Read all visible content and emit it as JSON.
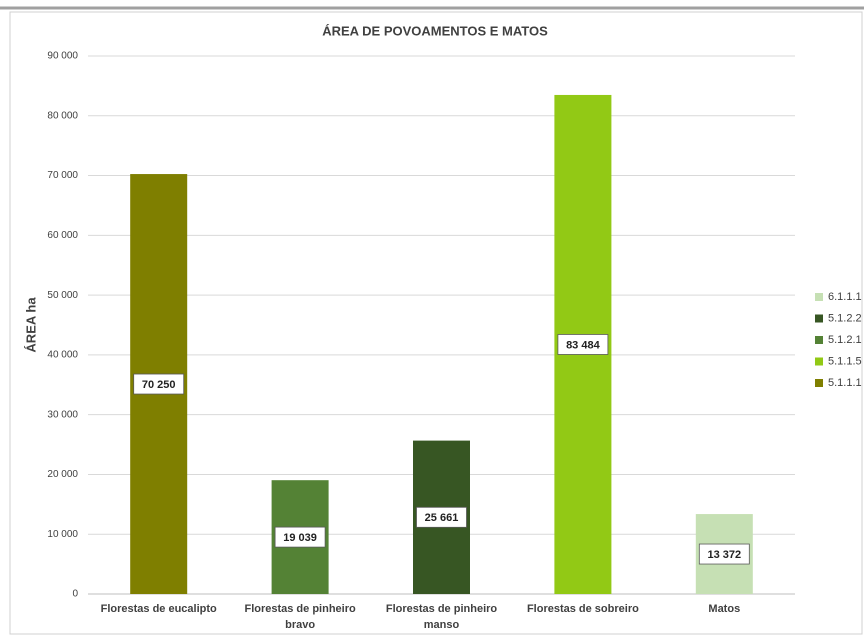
{
  "chart_data": {
    "type": "bar",
    "title": "ÁREA DE POVOAMENTOS E MATOS",
    "y_label": "ÁREA ha",
    "categories": [
      "Florestas de eucalipto",
      "Florestas de pinheiro bravo",
      "Florestas de pinheiro manso",
      "Florestas de sobreiro",
      "Matos"
    ],
    "series": [
      {
        "name": "5.1.1.1",
        "color": "#7f7f00",
        "values": [
          70250,
          null,
          null,
          null,
          null
        ],
        "value_labels": [
          "70 250",
          null,
          null,
          null,
          null
        ]
      },
      {
        "name": "5.1.1.5",
        "color": "#92c915",
        "values": [
          null,
          null,
          null,
          83484,
          null
        ],
        "value_labels": [
          null,
          null,
          null,
          "83 484",
          null
        ]
      },
      {
        "name": "5.1.2.1",
        "color": "#548235",
        "values": [
          null,
          19039,
          null,
          null,
          null
        ],
        "value_labels": [
          null,
          "19 039",
          null,
          null,
          null
        ]
      },
      {
        "name": "5.1.2.2",
        "color": "#375623",
        "values": [
          null,
          null,
          25661,
          null,
          null
        ],
        "value_labels": [
          null,
          null,
          "25 661",
          null,
          null
        ]
      },
      {
        "name": "6.1.1.1",
        "color": "#c6e0b4",
        "values": [
          null,
          null,
          null,
          null,
          13372
        ],
        "value_labels": [
          null,
          null,
          null,
          null,
          "13 372"
        ]
      }
    ],
    "legend_order": [
      4,
      3,
      2,
      1,
      0
    ],
    "ylim": [
      0,
      90000
    ],
    "yticks": [
      0,
      {
        "value": 10000,
        "label": "10 000"
      },
      {
        "value": 20000,
        "label": "20 000"
      },
      {
        "value": 30000,
        "label": "30 000"
      },
      {
        "value": 40000,
        "label": "40 000"
      },
      {
        "value": 50000,
        "label": "50 000"
      },
      {
        "value": 60000,
        "label": "60 000"
      },
      {
        "value": 70000,
        "label": "70 000"
      },
      {
        "value": 80000,
        "label": "80 000"
      },
      {
        "value": 90000,
        "label": "90 000"
      }
    ],
    "grid": true,
    "legend": "right"
  }
}
